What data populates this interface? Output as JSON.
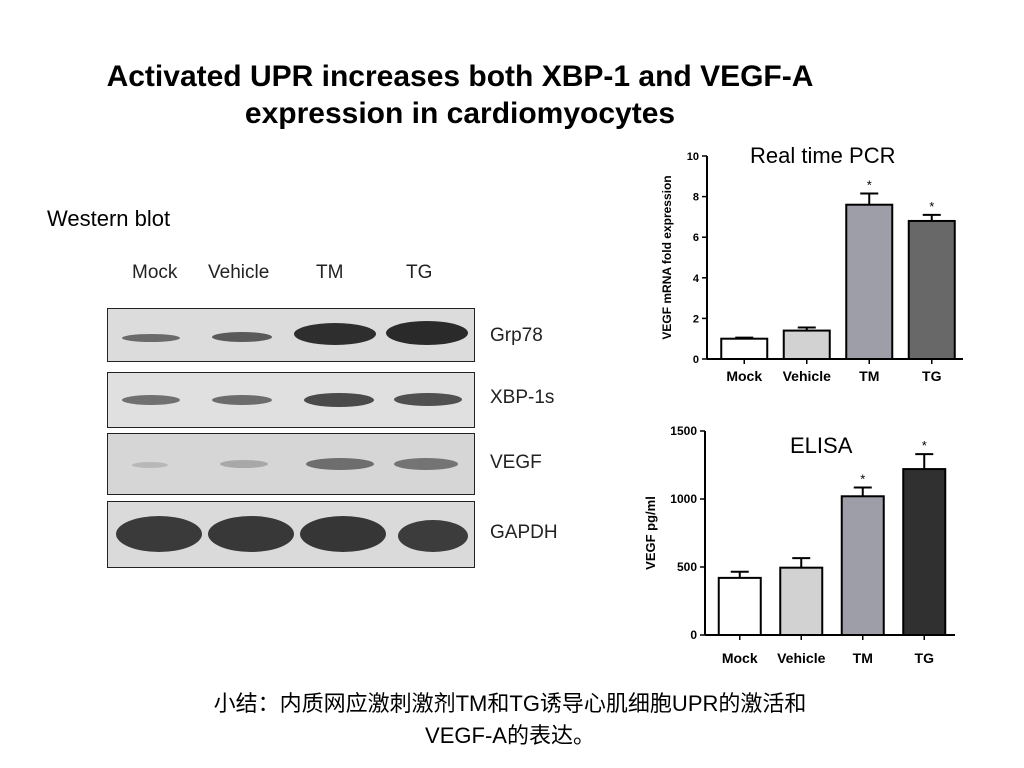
{
  "title": {
    "line1": "Activated UPR increases both XBP-1 and VEGF-A",
    "line2": "expression in cardiomyocytes"
  },
  "western_blot": {
    "label": "Western blot",
    "lanes": [
      "Mock",
      "Vehicle",
      "TM",
      "TG"
    ],
    "proteins": [
      "Grp78",
      "XBP-1s",
      "VEGF",
      "GAPDH"
    ]
  },
  "chart_data": [
    {
      "type": "bar",
      "panel_title": "Real time PCR",
      "ylabel": "VEGF mRNA fold expression",
      "xlabel": "",
      "categories": [
        "Mock",
        "Vehicle",
        "TM",
        "TG"
      ],
      "values": [
        1.0,
        1.4,
        7.6,
        6.8
      ],
      "errors": [
        0.05,
        0.15,
        0.55,
        0.3
      ],
      "significance": [
        "",
        "",
        "*",
        "*"
      ],
      "ylim": [
        0,
        10
      ],
      "yticks": [
        0,
        2,
        4,
        6,
        8,
        10
      ],
      "bar_colors": [
        "#ffffff",
        "#d2d2d2",
        "#9e9ea8",
        "#686868"
      ]
    },
    {
      "type": "bar",
      "panel_title": "ELISA",
      "ylabel": "VEGF pg/ml",
      "xlabel": "",
      "categories": [
        "Mock",
        "Vehicle",
        "TM",
        "TG"
      ],
      "values": [
        420,
        495,
        1020,
        1220
      ],
      "errors": [
        45,
        70,
        65,
        110
      ],
      "significance": [
        "",
        "",
        "*",
        "*"
      ],
      "ylim": [
        0,
        1500
      ],
      "yticks": [
        0,
        500,
        1000,
        1500
      ],
      "bar_colors": [
        "#ffffff",
        "#d2d2d2",
        "#9e9ea8",
        "#303030"
      ]
    }
  ],
  "summary": {
    "line1": "小结：内质网应激刺激剂TM和TG诱导心肌细胞UPR的激活和",
    "line2": "VEGF-A的表达。"
  }
}
